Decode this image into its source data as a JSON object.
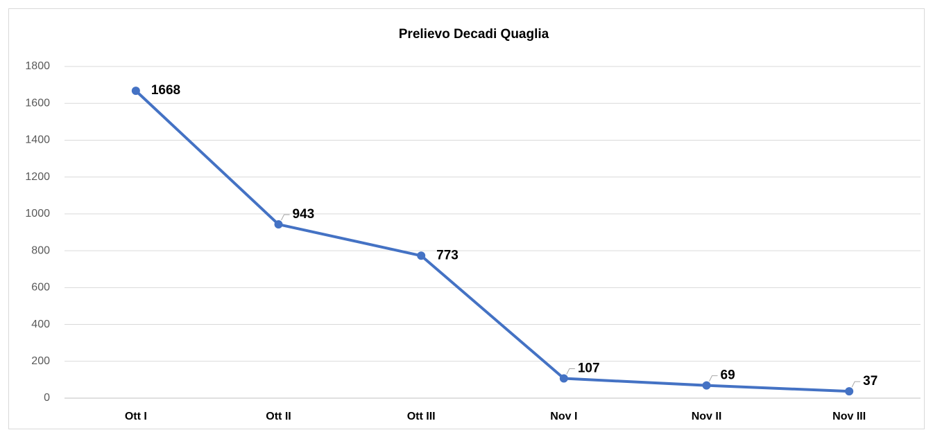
{
  "chart_data": {
    "type": "line",
    "title": "Prelievo Decadi Quaglia",
    "categories": [
      "Ott I",
      "Ott II",
      "Ott III",
      "Nov I",
      "Nov II",
      "Nov III"
    ],
    "values": [
      1668,
      943,
      773,
      107,
      69,
      37
    ],
    "color": "#4472c4",
    "ylim": [
      0,
      1800
    ],
    "yticks": [
      0,
      200,
      400,
      600,
      800,
      1000,
      1200,
      1400,
      1600,
      1800
    ],
    "grid": true
  }
}
